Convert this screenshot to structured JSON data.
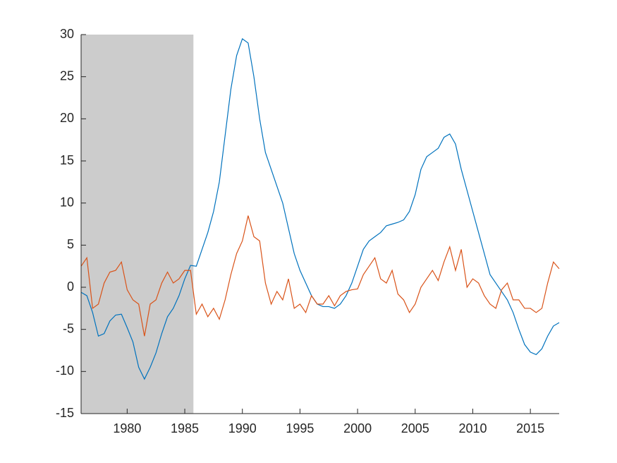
{
  "chart_data": {
    "type": "line",
    "x": [
      1976,
      1976.5,
      1977,
      1977.5,
      1978,
      1978.5,
      1979,
      1979.5,
      1980,
      1980.5,
      1981,
      1981.5,
      1982,
      1982.5,
      1983,
      1983.5,
      1984,
      1984.5,
      1985,
      1985.5,
      1986,
      1986.5,
      1987,
      1987.5,
      1988,
      1988.5,
      1989,
      1989.5,
      1990,
      1990.5,
      1991,
      1991.5,
      1992,
      1992.5,
      1993,
      1993.5,
      1994,
      1994.5,
      1995,
      1995.5,
      1996,
      1996.5,
      1997,
      1997.5,
      1998,
      1998.5,
      1999,
      1999.5,
      2000,
      2000.5,
      2001,
      2001.5,
      2002,
      2002.5,
      2003,
      2003.5,
      2004,
      2004.5,
      2005,
      2005.5,
      2006,
      2006.5,
      2007,
      2007.5,
      2008,
      2008.5,
      2009,
      2009.5,
      2010,
      2010.5,
      2011,
      2011.5,
      2012,
      2012.5,
      2013,
      2013.5,
      2014,
      2014.5,
      2015,
      2015.5,
      2016,
      2016.5,
      2017,
      2017.5
    ],
    "series": [
      {
        "color": "#0072bd",
        "values": [
          -0.6,
          -1.0,
          -3.0,
          -5.8,
          -5.5,
          -4.0,
          -3.3,
          -3.2,
          -4.8,
          -6.5,
          -9.5,
          -10.9,
          -9.5,
          -7.8,
          -5.5,
          -3.5,
          -2.5,
          -1.0,
          1.0,
          2.6,
          2.5,
          4.5,
          6.5,
          9.0,
          12.5,
          18,
          23.5,
          27.5,
          29.5,
          29,
          25,
          20,
          16,
          14,
          12,
          10,
          7,
          4,
          2,
          0.5,
          -1,
          -2,
          -2.3,
          -2.3,
          -2.5,
          -2,
          -1,
          0.5,
          2.5,
          4.5,
          5.5,
          6,
          6.5,
          7.3,
          7.5,
          7.7,
          8,
          9,
          11,
          14,
          15.5,
          16,
          16.5,
          17.8,
          18.2,
          17,
          14,
          11.5,
          9,
          6.5,
          4,
          1.5,
          0.5,
          -0.5,
          -1.5,
          -3,
          -5,
          -6.8,
          -7.7,
          -8,
          -7.3,
          -5.8,
          -4.6,
          -4.2
        ]
      },
      {
        "color": "#d95319",
        "values": [
          2.5,
          3.5,
          -2.5,
          -2.0,
          0.5,
          1.8,
          2.0,
          3.0,
          -0.3,
          -1.5,
          -2.0,
          -5.8,
          -2.0,
          -1.5,
          0.5,
          1.8,
          0.5,
          1.0,
          2.0,
          2.0,
          -3.2,
          -2.0,
          -3.5,
          -2.5,
          -3.8,
          -1.5,
          1.5,
          4.0,
          5.5,
          8.5,
          6.0,
          5.5,
          0.5,
          -2.0,
          -0.5,
          -1.5,
          1.0,
          -2.5,
          -2.0,
          -3.0,
          -1.0,
          -2.0,
          -2.0,
          -1.0,
          -2.2,
          -1.0,
          -0.5,
          -0.3,
          -0.2,
          1.5,
          2.5,
          3.5,
          1.0,
          0.5,
          2.0,
          -0.8,
          -1.5,
          -3.0,
          -2.0,
          0.0,
          1.0,
          2.0,
          0.8,
          3.0,
          4.8,
          2.0,
          4.5,
          0.0,
          1.0,
          0.5,
          -1.0,
          -2.0,
          -2.5,
          -0.3,
          0.5,
          -1.5,
          -1.5,
          -2.5,
          -2.5,
          -3.0,
          -2.5,
          0.5,
          3.0,
          2.2
        ]
      }
    ],
    "shaded_span": [
      1976,
      1985.75
    ],
    "shade_color": "#cccccc",
    "xlim": [
      1976,
      2017.5
    ],
    "ylim": [
      -15,
      30
    ],
    "xticks": [
      1980,
      1985,
      1990,
      1995,
      2000,
      2005,
      2010,
      2015
    ],
    "yticks": [
      -15,
      -10,
      -5,
      0,
      5,
      10,
      15,
      20,
      25,
      30
    ]
  }
}
